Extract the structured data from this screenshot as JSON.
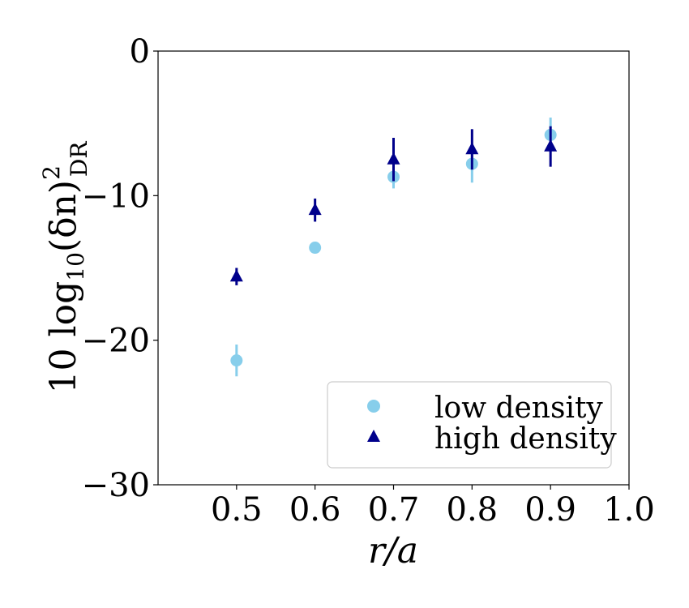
{
  "chart_data": {
    "type": "scatter",
    "xlabel": "r/a",
    "ylabel_main": "10 log",
    "ylabel_sub": "10",
    "ylabel_expr": "(δn)",
    "ylabel_sup": "2",
    "ylabel_sub2": "DR",
    "xlim": [
      0.4,
      1.0
    ],
    "ylim": [
      -30,
      0
    ],
    "xticks": [
      0.5,
      0.6,
      0.7,
      0.8,
      0.9,
      1.0
    ],
    "xtick_labels": [
      "0.5",
      "0.6",
      "0.7",
      "0.8",
      "0.9",
      "1.0"
    ],
    "yticks": [
      0,
      -10,
      -20,
      -30
    ],
    "ytick_labels": [
      "0",
      "−10",
      "−20",
      "−30"
    ],
    "grid": false,
    "legend_position": "lower-right",
    "series": [
      {
        "name": "low density",
        "marker": "circle",
        "color": "#87CEEB",
        "x": [
          0.5,
          0.6,
          0.7,
          0.8,
          0.9
        ],
        "y": [
          -21.4,
          -13.6,
          -8.7,
          -7.8,
          -5.8
        ],
        "err": [
          1.1,
          0.4,
          0.8,
          1.3,
          1.2
        ]
      },
      {
        "name": "high density",
        "marker": "triangle",
        "color": "#00008B",
        "x": [
          0.5,
          0.6,
          0.7,
          0.8,
          0.9
        ],
        "y": [
          -15.6,
          -11.0,
          -7.5,
          -6.8,
          -6.6
        ],
        "err": [
          0.6,
          0.8,
          1.5,
          1.4,
          1.4
        ]
      }
    ]
  }
}
